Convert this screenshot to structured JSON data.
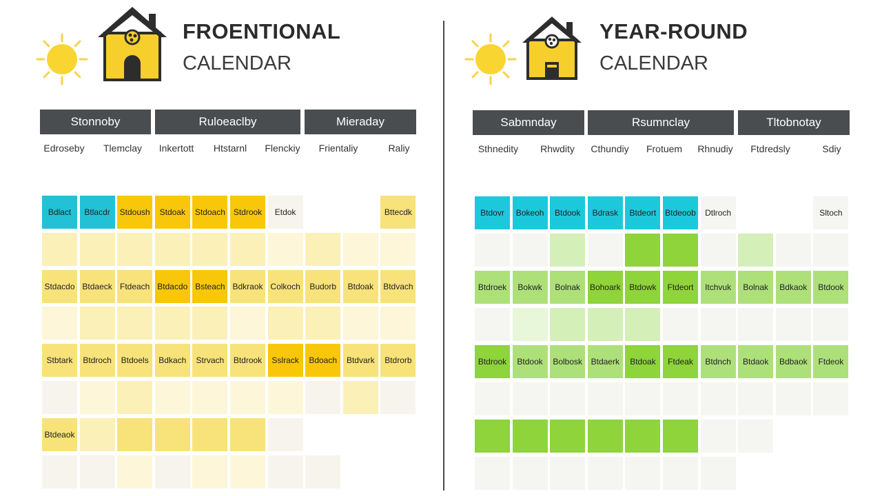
{
  "left": {
    "title": "FROENTIONAL",
    "subtitle": "CALENDAR",
    "headers": [
      "Stonnoby",
      "Ruloeaclby",
      "Mieraday"
    ],
    "days": [
      "Edroseby",
      "Tlemclay",
      "Inkertott",
      "Htstarnl",
      "Flenckiy",
      "Frientaliy",
      "Raliy"
    ],
    "colors": {
      "c": "#22c1d6",
      "Y": "#f8c70a",
      "y": "#f8e27a",
      "p": "#fbf0b8",
      "q": "#fdf6d8",
      "r": "#f7f4ee"
    },
    "rows": [
      [
        "c:Bdlact",
        "c:Btlacdr",
        "Y:Stdoush",
        "Y:Stdoak",
        "Y:Stdoach",
        "Y:Stdrook",
        "r:Etdok",
        "",
        "",
        "y:Bttecdk"
      ],
      [
        "p",
        "p",
        "p",
        "p",
        "p",
        "p",
        "q",
        "p",
        "q",
        "q"
      ],
      [
        "y:Stdacdo",
        "y:Btdaeck",
        "y:Ftdeach",
        "Y:Btdacdo",
        "Y:Bsteach",
        "y:Bdkraok",
        "y:Colkoch",
        "y:Budorb",
        "y:Btdoak",
        "y:Btdvach"
      ],
      [
        "q",
        "p",
        "p",
        "p",
        "p",
        "q",
        "p",
        "p",
        "q",
        "q"
      ],
      [
        "y:Stbtark",
        "y:Btdroch",
        "y:Btdoels",
        "y:Bdkach",
        "y:Strvach",
        "y:Btdrook",
        "Y:Sslrack",
        "Y:Bdoach",
        "y:Btdvark",
        "y:Btdrorb"
      ],
      [
        "r",
        "q",
        "p",
        "q",
        "q",
        "q",
        "q",
        "r",
        "p",
        "r"
      ],
      [
        "y:Btdeaok",
        "p",
        "y",
        "y",
        "y",
        "y",
        "r",
        "",
        "",
        ""
      ],
      [
        "r",
        "r",
        "q",
        "r",
        "q",
        "q",
        "r",
        "r",
        "",
        ""
      ]
    ]
  },
  "right": {
    "title": "YEAR-ROUND",
    "subtitle": "CALENDAR",
    "headers": [
      "Sabmnday",
      "Rsumnclay",
      "Tltobnotay"
    ],
    "days": [
      "Sthnedity",
      "Rhwdity",
      "Cthundiy",
      "Frotuem",
      "Rhnudiy",
      "Ftdredsly",
      "Sdiy"
    ],
    "colors": {
      "c": "#1cc9da",
      "G": "#8ed43a",
      "g": "#aee07a",
      "l": "#d5efb8",
      "m": "#e8f6da",
      "w": "#f5f5f2"
    },
    "rows": [
      [
        "c:Btdovr",
        "c:Bokeoh",
        "c:Btdook",
        "c:Bdrask",
        "c:Btdeort",
        "c:Btdeoob",
        "w:Dtlroch",
        "",
        "",
        "w:Sltoch"
      ],
      [
        "w",
        "w",
        "l",
        "w",
        "G",
        "G",
        "w",
        "l",
        "w",
        "w"
      ],
      [
        "g:Btdroek",
        "g:Bokwk",
        "g:Bolnak",
        "G:Bohoark",
        "G:Btdowk",
        "G:Ftdeort",
        "g:Itchvuk",
        "g:Bolnak",
        "g:Bdkaok",
        "g:Btdook"
      ],
      [
        "w",
        "m",
        "l",
        "l",
        "l",
        "w",
        "w",
        "w",
        "w",
        "w"
      ],
      [
        "G:Btdrook",
        "g:Btdook",
        "g:Bolbosk",
        "g:Btdaerk",
        "G:Btdoak",
        "G:Ftdeak",
        "g:Btdnch",
        "g:Btdaok",
        "g:Bdbaok",
        "g:Ftdeok"
      ],
      [
        "w",
        "w",
        "w",
        "w",
        "w",
        "w",
        "w",
        "w",
        "w",
        "w"
      ],
      [
        "G",
        "G",
        "G",
        "G",
        "G",
        "G",
        "w",
        "w",
        "",
        ""
      ],
      [
        "w",
        "w",
        "w",
        "w",
        "w",
        "w",
        "w",
        "",
        "",
        ""
      ]
    ]
  }
}
